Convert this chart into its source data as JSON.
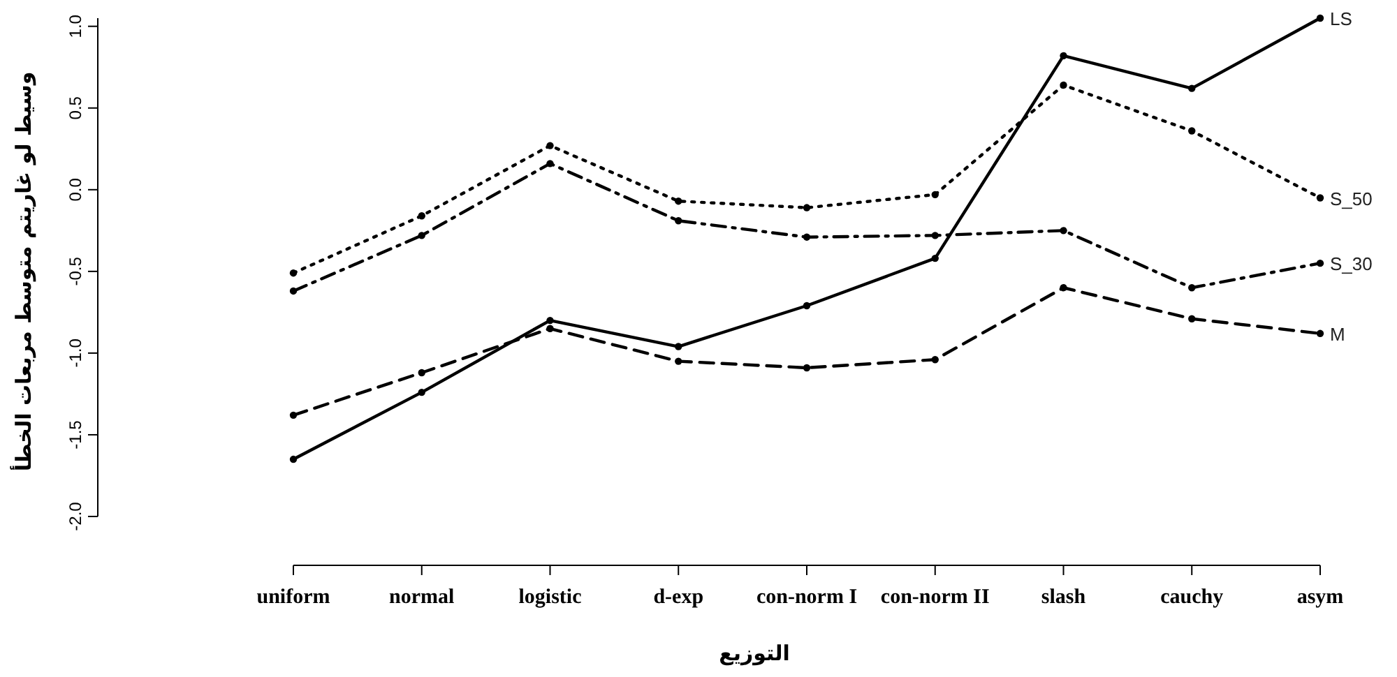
{
  "chart_data": {
    "type": "line",
    "xlabel": "التوزيع",
    "ylabel": "وسيط لو غاريتم متوسط مربعات الخطأ",
    "categories": [
      "uniform",
      "normal",
      "logistic",
      "d-exp",
      "con-norm I",
      "con-norm II",
      "slash",
      "cauchy",
      "asym"
    ],
    "ylim": [
      -2,
      1.05
    ],
    "yticks": [
      {
        "value": -2,
        "label": "-2.0"
      },
      {
        "value": -1.5,
        "label": "-1.5"
      },
      {
        "value": -1,
        "label": "-1.0"
      },
      {
        "value": -0.5,
        "label": "-0.5"
      },
      {
        "value": 0,
        "label": "0.0"
      },
      {
        "value": 0.5,
        "label": "0.5"
      },
      {
        "value": 1,
        "label": "1.0"
      }
    ],
    "marker": "circle",
    "grid": false,
    "series": [
      {
        "name": "LS",
        "color": "#000000",
        "line_style": "solid",
        "values": [
          -1.65,
          -1.24,
          -0.8,
          -0.96,
          -0.71,
          -0.42,
          0.82,
          0.62,
          1.05
        ]
      },
      {
        "name": "S_50",
        "color": "#000000",
        "line_style": "dotted",
        "values": [
          -0.51,
          -0.16,
          0.27,
          -0.07,
          -0.11,
          -0.03,
          0.64,
          0.36,
          -0.05
        ]
      },
      {
        "name": "S_30",
        "color": "#000000",
        "line_style": "dashdot",
        "values": [
          -0.62,
          -0.28,
          0.16,
          -0.19,
          -0.29,
          -0.28,
          -0.25,
          -0.6,
          -0.45
        ]
      },
      {
        "name": "M",
        "color": "#000000",
        "line_style": "dashed",
        "values": [
          -1.38,
          -1.12,
          -0.85,
          -1.05,
          -1.09,
          -1.04,
          -0.6,
          -0.79,
          -0.88
        ]
      }
    ]
  }
}
